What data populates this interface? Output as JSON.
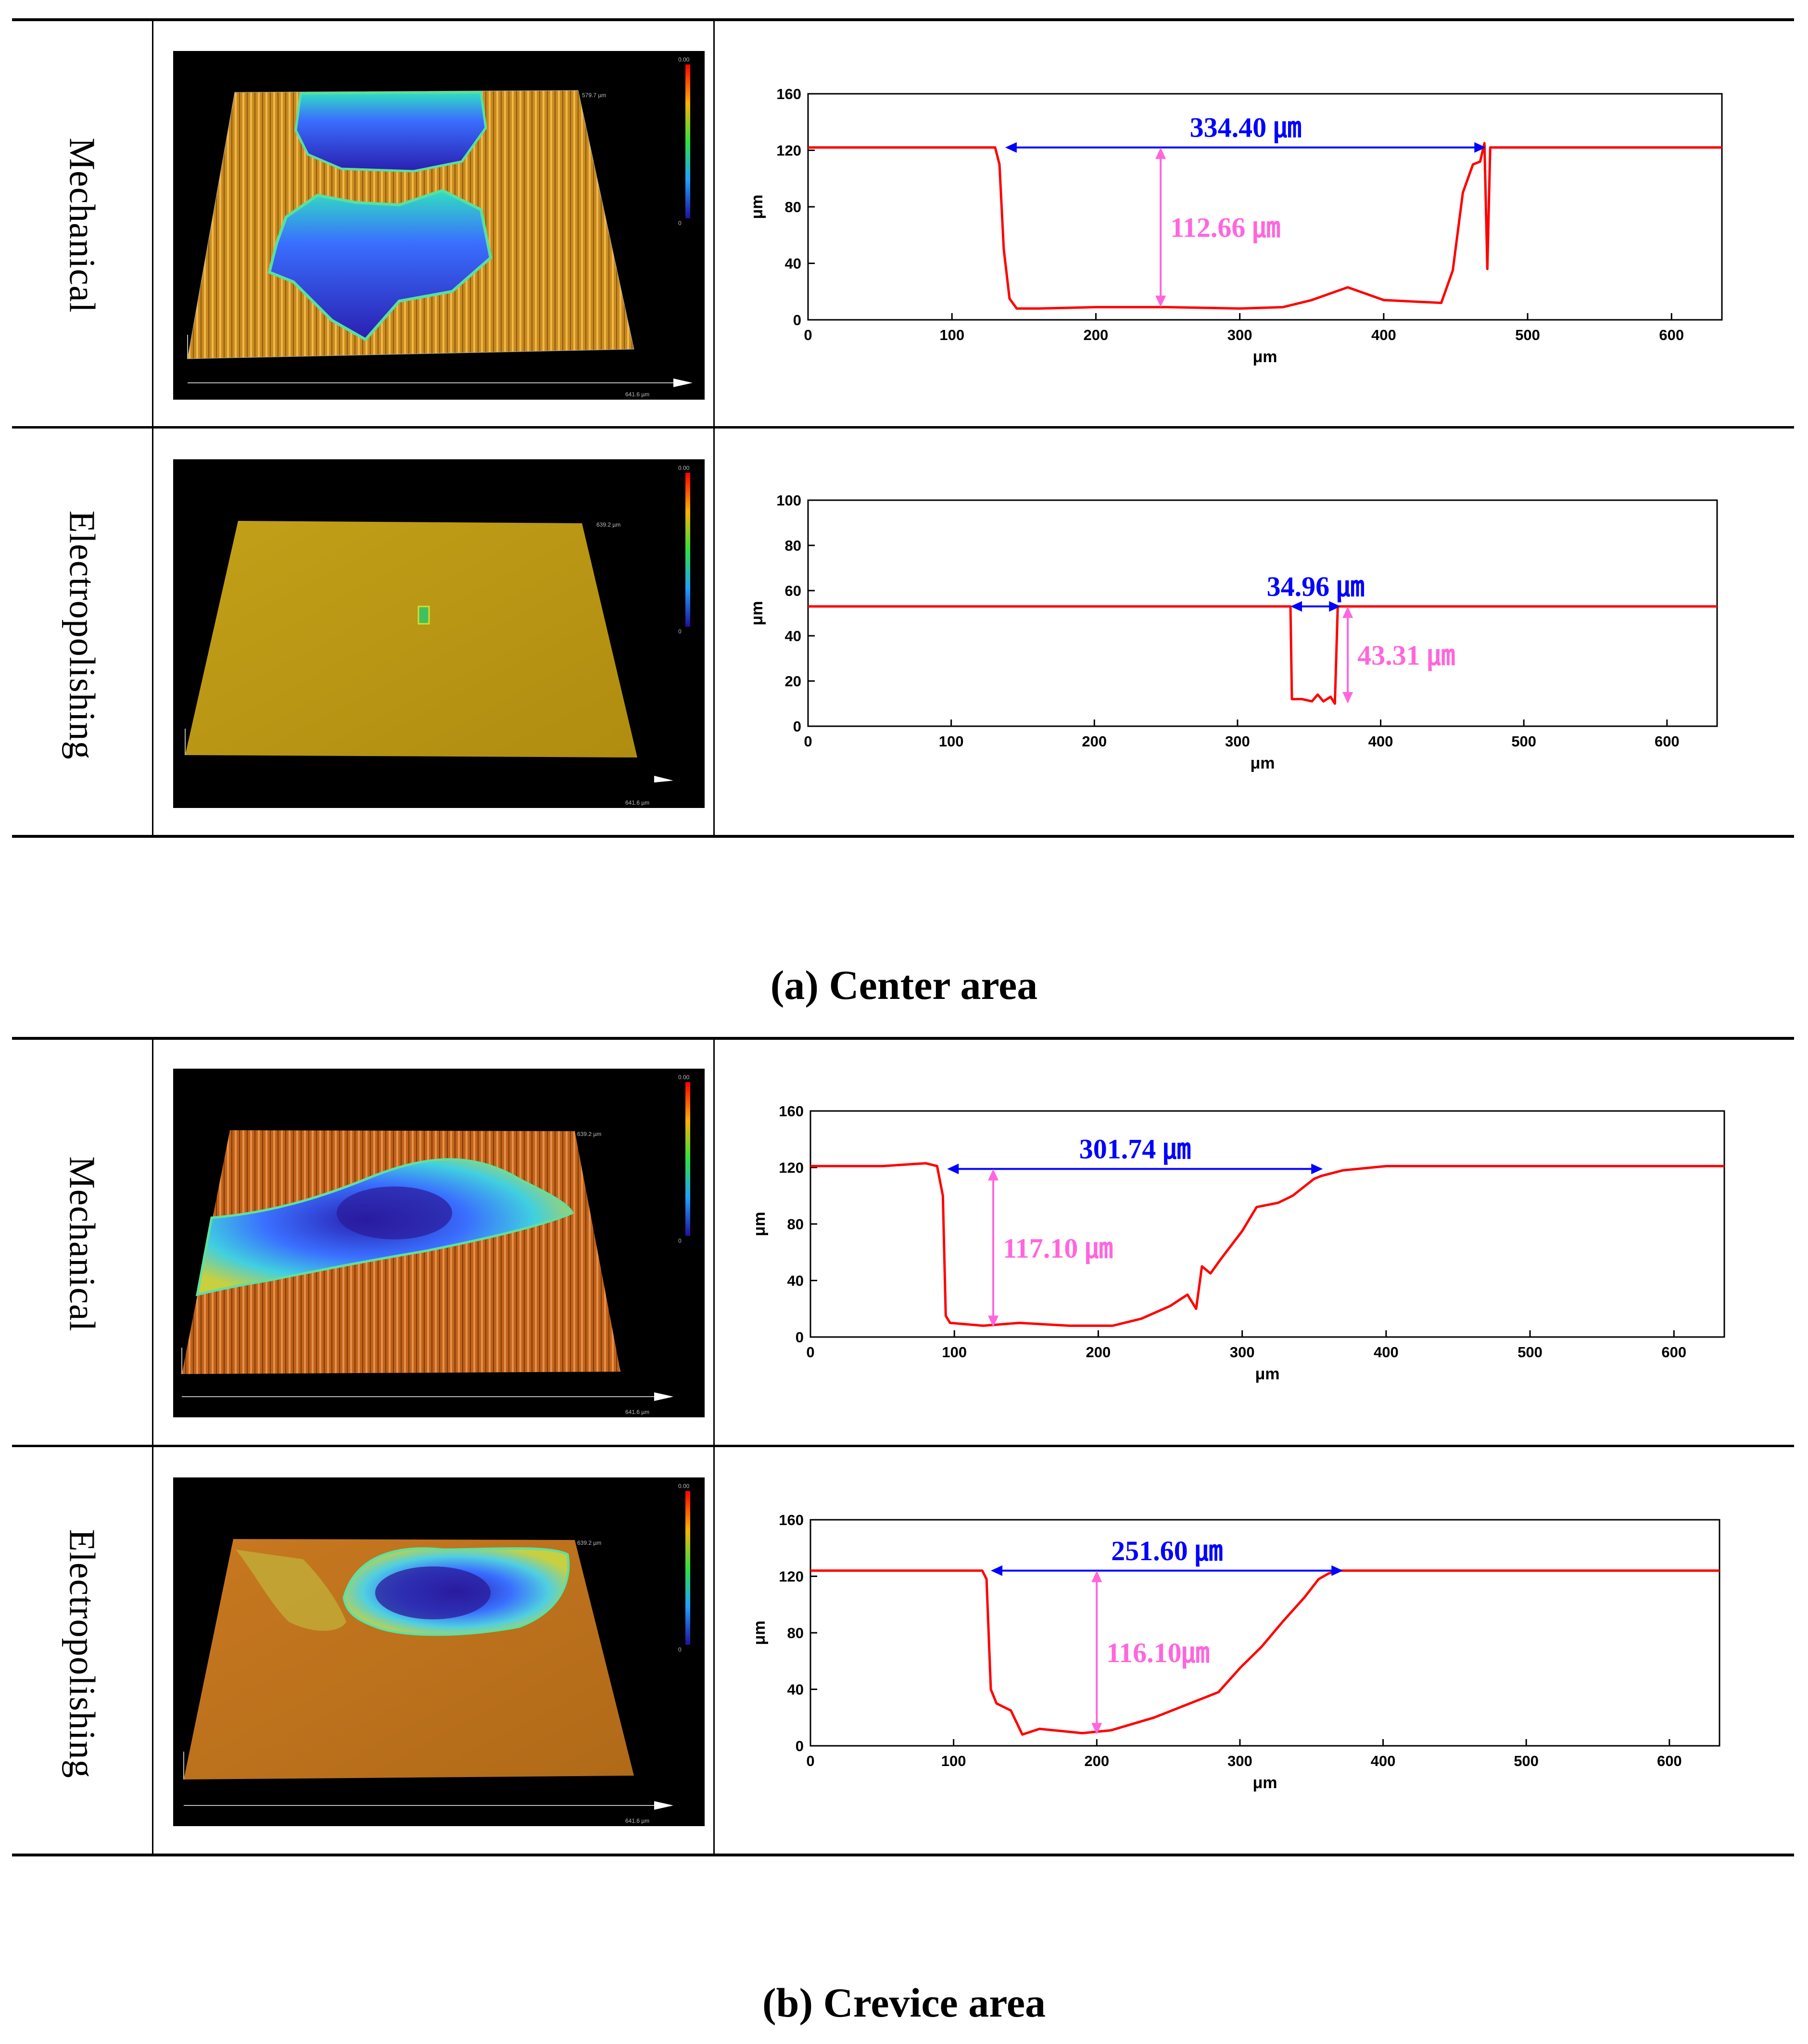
{
  "captions": {
    "center": "(a) Center area",
    "crevice": "(b) Crevice area"
  },
  "rows": [
    {
      "label": "Mechanical",
      "surface": "mech-center",
      "scale": {
        "top": "0.00",
        "bottom": "0",
        "y": "579.7 µm",
        "x": "641.6 µm"
      }
    },
    {
      "label": "Electropolishing",
      "surface": "ep-center",
      "scale": {
        "top": "0.00",
        "bottom": "0",
        "y": "639.2 µm",
        "x": "641.6 µm"
      }
    },
    {
      "label": "Mechanical",
      "surface": "mech-crevice",
      "scale": {
        "top": "0.00",
        "bottom": "0",
        "y": "639.2 µm",
        "x": "641.6 µm"
      }
    },
    {
      "label": "Electropolishing",
      "surface": "ep-crevice",
      "scale": {
        "top": "0.00",
        "bottom": "0",
        "y": "639.2 µm",
        "x": "641.6 µm"
      }
    }
  ],
  "colors": {
    "profile": "#ff0000",
    "width_arrow": "#0000ff",
    "depth_arrow": "#ff66dd"
  },
  "chart_data": [
    {
      "type": "line",
      "title": "",
      "xlabel": "μm",
      "ylabel": "μm",
      "xlim": [
        0,
        635
      ],
      "ylim": [
        0,
        160
      ],
      "xticks": [
        0,
        100,
        200,
        300,
        400,
        500,
        600
      ],
      "yticks": [
        0,
        40,
        80,
        120,
        160
      ],
      "series": [
        {
          "x": [
            0,
            50,
            100,
            130,
            133,
            136,
            140,
            145,
            160,
            200,
            250,
            300,
            330,
            350,
            375,
            400,
            440,
            448,
            455,
            462,
            467,
            470,
            472,
            474,
            480,
            520,
            580,
            635
          ],
          "y": [
            122,
            122,
            122,
            122,
            110,
            50,
            15,
            8,
            8,
            9,
            9,
            8,
            9,
            14,
            23,
            14,
            12,
            35,
            90,
            110,
            112,
            125,
            36,
            122,
            122,
            122,
            122,
            122
          ]
        }
      ],
      "annotations": {
        "width": {
          "label": "334.40 ㎛",
          "x1": 137,
          "x2": 471,
          "y": 122
        },
        "depth": {
          "label": "112.66 ㎛",
          "x": 245,
          "y1": 9,
          "y2": 122
        }
      }
    },
    {
      "type": "line",
      "title": "",
      "xlabel": "μm",
      "ylabel": "μm",
      "xlim": [
        0,
        635
      ],
      "ylim": [
        0,
        100
      ],
      "xticks": [
        0,
        100,
        200,
        300,
        400,
        500,
        600
      ],
      "yticks": [
        0,
        20,
        40,
        60,
        80,
        100
      ],
      "series": [
        {
          "x": [
            0,
            100,
            200,
            300,
            335,
            337,
            338,
            345,
            352,
            356,
            360,
            365,
            368,
            370,
            372,
            380,
            450,
            530,
            600,
            635
          ],
          "y": [
            53,
            53,
            53,
            53,
            53,
            53,
            12,
            12,
            11,
            14,
            11,
            13,
            10,
            53,
            53,
            53,
            53,
            53,
            53,
            53
          ]
        }
      ],
      "annotations": {
        "width": {
          "label": "34.96 ㎛",
          "x1": 337,
          "x2": 372,
          "y": 53
        },
        "depth": {
          "label": "43.31 ㎛",
          "x": 377,
          "y1": 10,
          "y2": 53
        }
      }
    },
    {
      "type": "line",
      "title": "",
      "xlabel": "μm",
      "ylabel": "μm",
      "xlim": [
        0,
        635
      ],
      "ylim": [
        0,
        160
      ],
      "xticks": [
        0,
        100,
        200,
        300,
        400,
        500,
        600
      ],
      "yticks": [
        0,
        40,
        80,
        120,
        160
      ],
      "series": [
        {
          "x": [
            0,
            50,
            80,
            88,
            92,
            94,
            97,
            120,
            145,
            180,
            210,
            230,
            250,
            262,
            268,
            272,
            278,
            285,
            300,
            310,
            325,
            335,
            345,
            350,
            355,
            370,
            400,
            460,
            540,
            635
          ],
          "y": [
            121,
            121,
            123,
            121,
            100,
            15,
            10,
            8,
            10,
            8,
            8,
            13,
            22,
            30,
            20,
            50,
            45,
            55,
            75,
            92,
            95,
            100,
            108,
            112,
            114,
            118,
            121,
            121,
            121,
            121
          ]
        }
      ],
      "annotations": {
        "width": {
          "label": "301.74 ㎛",
          "x1": 95,
          "x2": 356,
          "y": 119
        },
        "depth": {
          "label": "117.10 ㎛",
          "x": 127,
          "y1": 7,
          "y2": 119
        }
      }
    },
    {
      "type": "line",
      "title": "",
      "xlabel": "μm",
      "ylabel": "μm",
      "xlim": [
        0,
        635
      ],
      "ylim": [
        0,
        160
      ],
      "xticks": [
        0,
        100,
        200,
        300,
        400,
        500,
        600
      ],
      "yticks": [
        0,
        40,
        80,
        120,
        160
      ],
      "series": [
        {
          "x": [
            0,
            50,
            100,
            120,
            123,
            126,
            130,
            140,
            148,
            160,
            190,
            210,
            240,
            265,
            285,
            300,
            315,
            330,
            345,
            355,
            362,
            370,
            380,
            420,
            500,
            635
          ],
          "y": [
            124,
            124,
            124,
            124,
            118,
            40,
            30,
            25,
            8,
            12,
            9,
            11,
            20,
            30,
            38,
            55,
            70,
            88,
            105,
            118,
            122,
            124,
            124,
            124,
            124,
            124
          ]
        }
      ],
      "annotations": {
        "width": {
          "label": "251.60 ㎛",
          "x1": 126,
          "x2": 372,
          "y": 124
        },
        "depth": {
          "label": "116.10㎛",
          "x": 200,
          "y1": 8,
          "y2": 124
        }
      }
    }
  ]
}
